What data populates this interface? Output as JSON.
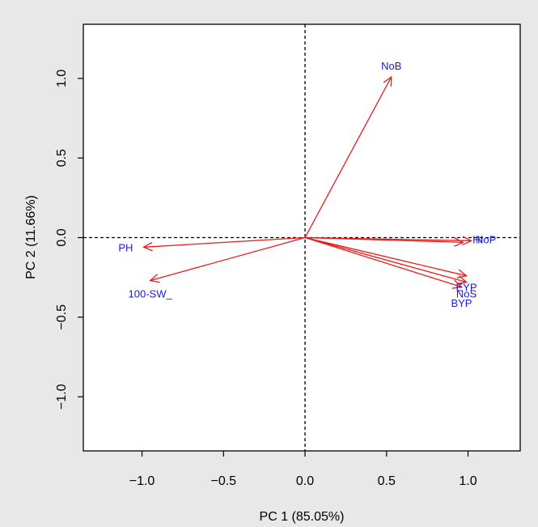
{
  "chart_data": {
    "type": "biplot",
    "title": "",
    "xlabel": "PC 1 (85.05%)",
    "ylabel": "PC 2 (11.66%)",
    "xlim": [
      -1.36,
      1.32
    ],
    "ylim": [
      -1.34,
      1.34
    ],
    "x_ticks": [
      {
        "value": -1.0,
        "label": "−1.0"
      },
      {
        "value": -0.5,
        "label": "−0.5"
      },
      {
        "value": 0.0,
        "label": "0.0"
      },
      {
        "value": 0.5,
        "label": "0.5"
      },
      {
        "value": 1.0,
        "label": "1.0"
      }
    ],
    "y_ticks": [
      {
        "value": -1.0,
        "label": "−1.0"
      },
      {
        "value": -0.5,
        "label": "−0.5"
      },
      {
        "value": 0.0,
        "label": "0.0"
      },
      {
        "value": 0.5,
        "label": "0.5"
      },
      {
        "value": 1.0,
        "label": "1.0"
      }
    ],
    "reference_lines": {
      "x": 0,
      "y": 0,
      "style": "dashed"
    },
    "arrows": [
      {
        "label": "NoB",
        "x": 0.53,
        "y": 1.01,
        "label_x": 0.53,
        "label_y": 1.08
      },
      {
        "label": "HI",
        "x": 0.97,
        "y": -0.03,
        "label_x": 1.06,
        "label_y": -0.01
      },
      {
        "label": "NoP",
        "x": 1.02,
        "y": -0.02,
        "label_x": 1.11,
        "label_y": -0.01
      },
      {
        "label": "PH",
        "x": -0.99,
        "y": -0.06,
        "label_x": -1.1,
        "label_y": -0.06
      },
      {
        "label": "100-SW_",
        "x": -0.95,
        "y": -0.27,
        "label_x": -0.95,
        "label_y": -0.35
      },
      {
        "label": "EYP",
        "x": 0.99,
        "y": -0.24,
        "label_x": 0.99,
        "label_y": -0.31
      },
      {
        "label": "NoS",
        "x": 0.99,
        "y": -0.28,
        "label_x": 0.99,
        "label_y": -0.35
      },
      {
        "label": "BYP",
        "x": 0.96,
        "y": -0.31,
        "label_x": 0.96,
        "label_y": -0.41
      }
    ],
    "colors": {
      "arrow": "#e81c1c",
      "label": "#1a1adf",
      "axis": "#000000",
      "background": "#e8e8e8",
      "plot_background": "#ffffff"
    }
  }
}
